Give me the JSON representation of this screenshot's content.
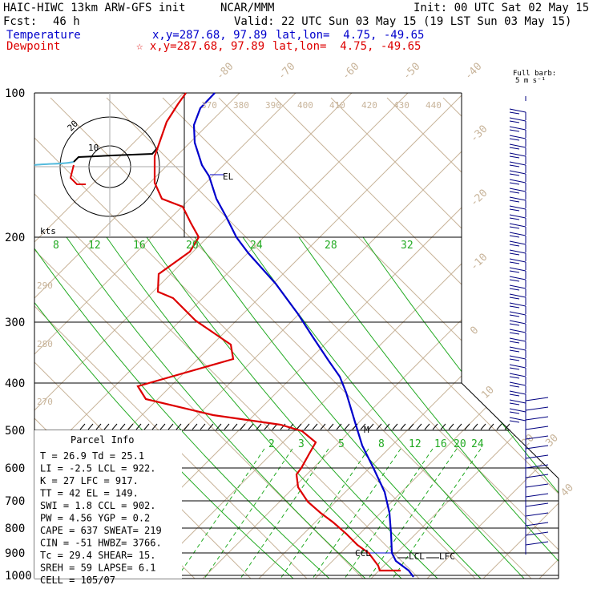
{
  "header": {
    "model": "HAIC-HIWC 13km ARW-GFS init",
    "org": "NCAR/MMM",
    "init": "Init: 00 UTC Sat 02 May 15",
    "fcst_label": "Fcst:",
    "fcst_value": "46 h",
    "valid": "Valid: 22 UTC Sun 03 May 15 (19 LST Sun 03 May 15)",
    "temp_label": "Temperature",
    "temp_xy": "x,y=287.68, 97.89",
    "temp_latlon": "lat,lon=  4.75, -49.65",
    "dew_label": "Dewpoint",
    "dew_xy": "☆ x,y=287.68, 97.89",
    "dew_latlon": "lat,lon=  4.75, -49.65"
  },
  "barb_legend": {
    "line1": "Full barb:",
    "line2": "5 m s⁻¹"
  },
  "hodograph": {
    "rings": [
      "10",
      "20"
    ],
    "units": "kts"
  },
  "labels": {
    "el": "EL",
    "m": "M",
    "ccl": "CCL",
    "lcl": "LCL",
    "lfc": "LFC"
  },
  "axes": {
    "pressure_ticks": [
      "100",
      "200",
      "300",
      "400",
      "500",
      "600",
      "700",
      "800",
      "900",
      "1000"
    ],
    "temp_ticks": [
      "-80",
      "-70",
      "-60",
      "-50",
      "-40",
      "-30",
      "-20",
      "-10",
      "0",
      "10",
      "20",
      "30",
      "40"
    ],
    "theta_top": [
      "370",
      "380",
      "390",
      "400",
      "410",
      "420",
      "430",
      "440"
    ],
    "theta_left": [
      "290",
      "280",
      "270"
    ],
    "mix_upper": [
      "8",
      "12",
      "16",
      "20",
      "24",
      "28",
      "32"
    ],
    "mix_lower": [
      "2",
      "3",
      "5",
      "8",
      "12",
      "16",
      "20",
      "24"
    ]
  },
  "parcel_info": {
    "title": "Parcel Info",
    "rows": [
      "T  =    26.9  Td =  25.1",
      "LI =    -2.5  LCL =  922.",
      "K  =      27  LFC =  917.",
      "TT =      42  EL  =  149.",
      "SWI =    1.8  CCL =  902.",
      "PW =    4.56  YGP =   0.2",
      "CAPE =   637  SWEAT=  219",
      "CIN =    -51  HWBZ= 3766.",
      "Tc =    29.4  SHEAR=  15.",
      "SREH =    59  LAPSE=  6.1",
      "CELL = 105/07"
    ]
  },
  "chart_data": {
    "type": "line",
    "title": "",
    "xlabel": "",
    "ylabel": "",
    "y_scale": "log-pressure (hPa)",
    "ylim": [
      1000,
      100
    ],
    "series": [
      {
        "name": "Temperature",
        "color": "#0000cc",
        "x": [
          -75,
          -77,
          -73,
          -68,
          -60,
          -53,
          -46,
          -38,
          -30,
          -24,
          -18,
          -12,
          -8,
          -3,
          2,
          7,
          12,
          16,
          20,
          23,
          26.9
        ],
        "y": [
          100,
          110,
          125,
          150,
          175,
          200,
          225,
          250,
          300,
          350,
          400,
          450,
          500,
          550,
          600,
          700,
          800,
          850,
          900,
          950,
          1000
        ]
      },
      {
        "name": "Dewpoint",
        "color": "#dd0000",
        "x": [
          -92,
          -95,
          -96,
          -96,
          -80,
          -70,
          -80,
          -70,
          -48,
          -38,
          -62,
          -34,
          -8,
          -5,
          -10,
          -10,
          -6,
          2,
          12,
          19,
          25.1
        ],
        "y": [
          100,
          115,
          140,
          175,
          185,
          200,
          230,
          260,
          300,
          360,
          410,
          460,
          500,
          540,
          590,
          650,
          700,
          800,
          870,
          950,
          1000
        ]
      }
    ],
    "wind_barbs": "profile on right margin, 100-1000 hPa"
  }
}
